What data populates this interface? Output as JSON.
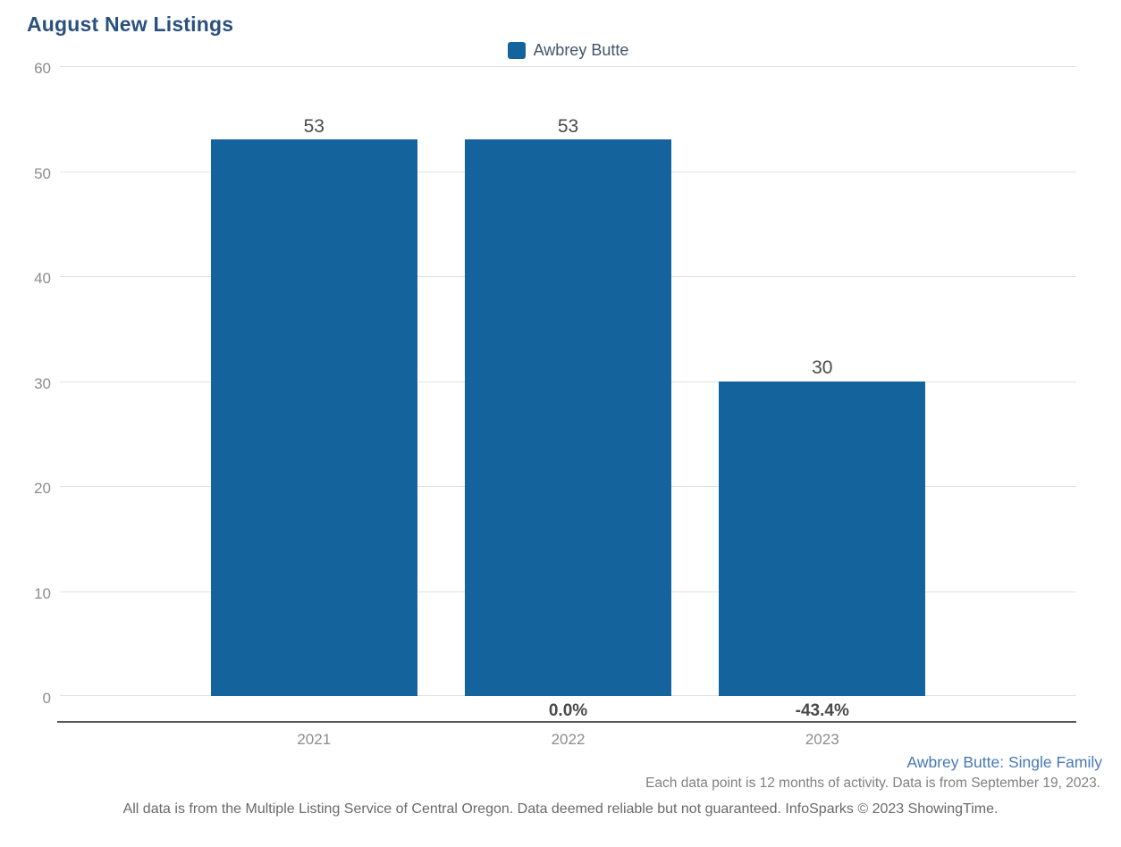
{
  "title": "August New Listings",
  "chart_data": {
    "type": "bar",
    "title": "August New Listings",
    "categories": [
      "2021",
      "2022",
      "2023"
    ],
    "series": [
      {
        "name": "Awbrey Butte",
        "values": [
          53,
          53,
          30
        ],
        "color": "#15639C"
      }
    ],
    "value_labels": [
      "53",
      "53",
      "30"
    ],
    "pct_change_labels": [
      "",
      "0.0%",
      "-43.4%"
    ],
    "xlabel": "",
    "ylabel": "",
    "ylim": [
      0,
      60
    ],
    "y_ticks": [
      60,
      50,
      40,
      30,
      20,
      10,
      0
    ],
    "grid": "horizontal-on",
    "legend_position": "top-center"
  },
  "legend": {
    "label": "Awbrey Butte",
    "swatch_icon": "legend-swatch-square"
  },
  "footer": {
    "series_note": "Awbrey Butte: Single Family",
    "data_note": "Each data point is 12 months of activity. Data is from September 19, 2023.",
    "disclaimer": "All data is from the Multiple Listing Service of Central Oregon. Data deemed reliable but not guaranteed. InfoSparks © 2023 ShowingTime."
  },
  "colors": {
    "bar": "#15639C",
    "title": "#29517E",
    "legend_text": "#44546A",
    "link": "#4779B4",
    "value_label": "#4A4A4A",
    "pct_label": "#4A4A4A",
    "tick_label": "#8C8C8C",
    "year_label": "#8C8C8C",
    "gridline": "#E2E2E2",
    "axis_line": "#58585A",
    "note_text": "#808080",
    "disclaimer_text": "#696969"
  }
}
